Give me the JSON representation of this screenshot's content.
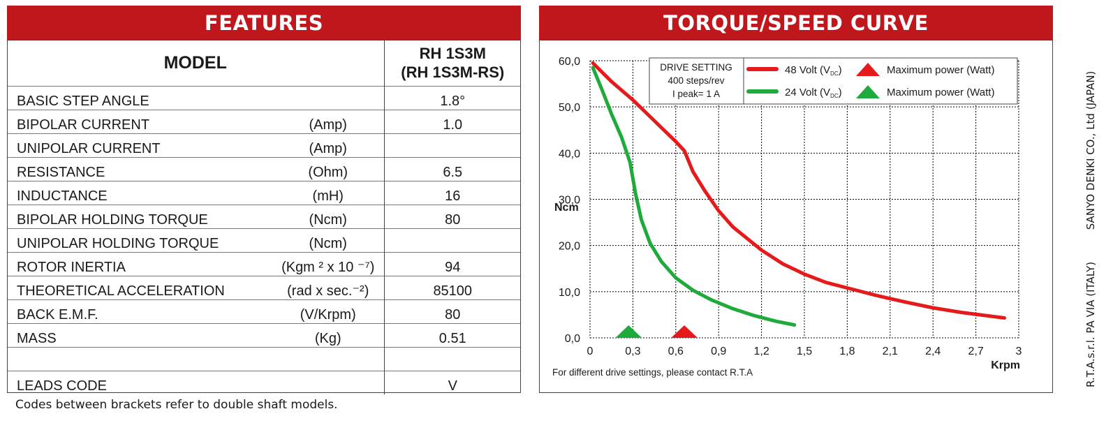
{
  "features": {
    "header": "FEATURES",
    "model_label": "MODEL",
    "model_value_1": "RH 1S3M",
    "model_value_2": "(RH 1S3M-RS)",
    "rows": [
      {
        "label": "BASIC STEP ANGLE",
        "unit": "",
        "value": "1.8°"
      },
      {
        "label": "BIPOLAR CURRENT",
        "unit": "(Amp)",
        "value": "1.0"
      },
      {
        "label": "UNIPOLAR CURRENT",
        "unit": "(Amp)",
        "value": ""
      },
      {
        "label": "RESISTANCE",
        "unit": "(Ohm)",
        "value": "6.5"
      },
      {
        "label": "INDUCTANCE",
        "unit": "(mH)",
        "value": "16"
      },
      {
        "label": "BIPOLAR HOLDING TORQUE",
        "unit": "(Ncm)",
        "value": "80"
      },
      {
        "label": "UNIPOLAR HOLDING TORQUE",
        "unit": "(Ncm)",
        "value": ""
      },
      {
        "label": "ROTOR INERTIA",
        "unit": "(Kgm ² x 10 ⁻⁷)",
        "value": "94"
      },
      {
        "label": "THEORETICAL ACCELERATION",
        "unit": "(rad x sec.⁻²)",
        "value": "85100"
      },
      {
        "label": "BACK E.M.F.",
        "unit": "(V/Krpm)",
        "value": "80"
      },
      {
        "label": "MASS",
        "unit": "(Kg)",
        "value": "0.51"
      },
      {
        "label": "",
        "unit": "",
        "value": ""
      },
      {
        "label": "LEADS CODE",
        "unit": "",
        "value": "V"
      }
    ],
    "footnote": "Codes between brackets refer to double shaft models."
  },
  "side_text": {
    "part1": "R.T.A.s.r.l. PA VIA (ITALY)",
    "part2": "SANYO DENKI CO., Ltd (JAPAN)"
  },
  "chart_data": {
    "type": "line",
    "title": "TORQUE/SPEED CURVE",
    "xlabel": "Krpm",
    "ylabel": "Ncm",
    "xlim": [
      0,
      3
    ],
    "ylim": [
      0,
      60
    ],
    "x_ticks": [
      "0",
      "0,3",
      "0,6",
      "0,9",
      "1,2",
      "1,5",
      "1,8",
      "2,1",
      "2,4",
      "2,7",
      "3"
    ],
    "y_ticks": [
      "0,0",
      "10,0",
      "20,0",
      "30,0",
      "40,0",
      "50,0",
      "60,0"
    ],
    "grid": true,
    "drive_setting": [
      "DRIVE SETTING",
      "400 steps/rev",
      "I peak= 1 A"
    ],
    "legend_position": "top",
    "series": [
      {
        "name": "48 Volt (VDC)",
        "name_main": "48 Volt (V",
        "name_sub": "DC",
        "name_end": ")",
        "color": "#e51b1b",
        "max_power_label": "Maximum power (Watt)",
        "max_power_x": 0.66,
        "points": [
          [
            0.02,
            59.5
          ],
          [
            0.15,
            55.5
          ],
          [
            0.3,
            51.5
          ],
          [
            0.45,
            47.0
          ],
          [
            0.6,
            42.5
          ],
          [
            0.66,
            40.5
          ],
          [
            0.72,
            36.0
          ],
          [
            0.8,
            32.0
          ],
          [
            0.9,
            27.5
          ],
          [
            1.0,
            24.0
          ],
          [
            1.1,
            21.5
          ],
          [
            1.2,
            19.0
          ],
          [
            1.35,
            16.0
          ],
          [
            1.5,
            13.8
          ],
          [
            1.65,
            12.0
          ],
          [
            1.8,
            10.8
          ],
          [
            2.0,
            9.2
          ],
          [
            2.2,
            7.8
          ],
          [
            2.4,
            6.5
          ],
          [
            2.6,
            5.5
          ],
          [
            2.8,
            4.7
          ],
          [
            2.9,
            4.3
          ]
        ]
      },
      {
        "name": "24 Volt (VDC)",
        "name_main": "24 Volt (V",
        "name_sub": "DC",
        "name_end": ")",
        "color": "#1faa3c",
        "max_power_label": "Maximum power (Watt)",
        "max_power_x": 0.27,
        "points": [
          [
            0.02,
            58.5
          ],
          [
            0.08,
            54.0
          ],
          [
            0.15,
            48.5
          ],
          [
            0.22,
            43.5
          ],
          [
            0.28,
            38.0
          ],
          [
            0.32,
            31.0
          ],
          [
            0.36,
            25.5
          ],
          [
            0.42,
            20.5
          ],
          [
            0.5,
            16.5
          ],
          [
            0.6,
            13.0
          ],
          [
            0.72,
            10.3
          ],
          [
            0.85,
            8.2
          ],
          [
            1.0,
            6.3
          ],
          [
            1.15,
            4.8
          ],
          [
            1.3,
            3.6
          ],
          [
            1.43,
            2.8
          ]
        ]
      }
    ],
    "note": "For different drive settings, please contact R.T.A"
  }
}
